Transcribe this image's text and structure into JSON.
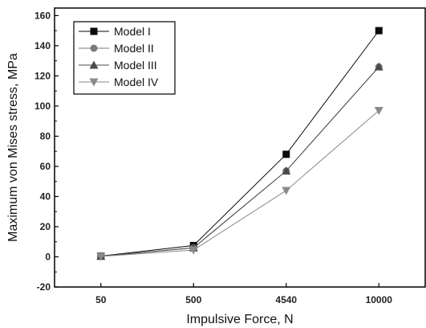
{
  "chart_data": {
    "type": "line",
    "xlabel": "Impulsive Force, N",
    "ylabel": "Maximum von Mises stress, MPa",
    "categories": [
      "50",
      "500",
      "4540",
      "10000"
    ],
    "ylim": [
      -20,
      165
    ],
    "yticks": [
      -20,
      0,
      20,
      40,
      60,
      80,
      100,
      120,
      140,
      160
    ],
    "grid": false,
    "legend_position": "top-left",
    "series": [
      {
        "name": "Model I",
        "marker": "square",
        "color": "#0a0a0a",
        "values": [
          0.5,
          7.5,
          68,
          150
        ]
      },
      {
        "name": "Model II",
        "marker": "circle",
        "color": "#7a7a7a",
        "values": [
          0.4,
          6.0,
          57,
          126
        ]
      },
      {
        "name": "Model III",
        "marker": "triangle-up",
        "color": "#4a4a4a",
        "values": [
          0.4,
          6.0,
          57,
          126
        ]
      },
      {
        "name": "Model IV",
        "marker": "triangle-down",
        "color": "#8a8a8a",
        "values": [
          0.3,
          4.5,
          44,
          97
        ]
      }
    ]
  }
}
